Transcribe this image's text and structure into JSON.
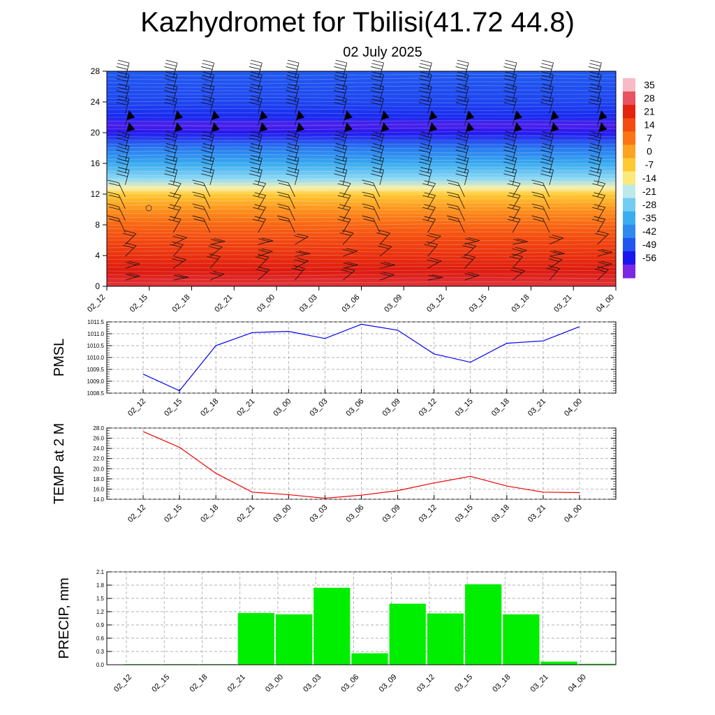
{
  "header": {
    "title": "Kazhydromet for Tbilisi(41.72 44.8)",
    "date": "02 July 2025"
  },
  "chart_data": [
    {
      "type": "heatmap",
      "name": "temperature-cross-section-with-wind-barbs",
      "x_categories": [
        "02_12",
        "02_15",
        "02_18",
        "02_21",
        "03_00",
        "03_03",
        "03_06",
        "03_09",
        "03_12",
        "03_15",
        "03_18",
        "03_21",
        "04_00"
      ],
      "y_ticks": [
        0,
        4,
        8,
        12,
        16,
        20,
        24,
        28
      ],
      "ylim": [
        0,
        28
      ],
      "colorbar": {
        "levels": [
          35,
          28,
          21,
          14,
          7,
          0,
          -7,
          -14,
          -21,
          -28,
          -35,
          -42,
          -49,
          -56
        ],
        "range": [
          -60,
          38
        ]
      },
      "temperature_profile": [
        {
          "level": 0,
          "value": 30
        },
        {
          "level": 2,
          "value": 26
        },
        {
          "level": 4,
          "value": 22
        },
        {
          "level": 6,
          "value": 18
        },
        {
          "level": 8,
          "value": 13
        },
        {
          "level": 10,
          "value": 6
        },
        {
          "level": 12,
          "value": -4
        },
        {
          "level": 12.8,
          "value": -12
        },
        {
          "level": 14,
          "value": -22
        },
        {
          "level": 16,
          "value": -32
        },
        {
          "level": 18,
          "value": -42
        },
        {
          "level": 20,
          "value": -53
        },
        {
          "level": 21,
          "value": -56
        },
        {
          "level": 22,
          "value": -50
        },
        {
          "level": 24,
          "value": -47
        },
        {
          "level": 28,
          "value": -45
        }
      ]
    },
    {
      "type": "line",
      "name": "pmsl",
      "ylabel": "PMSL",
      "categories": [
        "02_12",
        "02_15",
        "02_18",
        "02_21",
        "03_00",
        "03_03",
        "03_06",
        "03_09",
        "03_12",
        "03_15",
        "03_18",
        "03_21",
        "04_00"
      ],
      "values": [
        1009.3,
        1008.6,
        1010.5,
        1011.05,
        1011.1,
        1010.8,
        1011.4,
        1011.15,
        1010.15,
        1009.8,
        1010.6,
        1010.7,
        1011.3
      ],
      "yticks": [
        "1008.5",
        "1009.0",
        "1009.5",
        "1010.0",
        "1010.5",
        "1011.0",
        "1011.5"
      ],
      "ylim": [
        1008.5,
        1011.5
      ],
      "color": "#0000ee"
    },
    {
      "type": "line",
      "name": "temp-2m",
      "ylabel": "TEMP at 2 M",
      "categories": [
        "02_12",
        "02_15",
        "02_18",
        "02_21",
        "03_00",
        "03_03",
        "03_06",
        "03_09",
        "03_12",
        "03_15",
        "03_18",
        "03_21",
        "04_00"
      ],
      "values": [
        27.3,
        24.2,
        19.1,
        15.4,
        14.9,
        14.2,
        14.8,
        15.7,
        17.2,
        18.5,
        16.6,
        15.4,
        15.3
      ],
      "yticks": [
        "14.0",
        "16.0",
        "18.0",
        "20.0",
        "22.0",
        "24.0",
        "26.0",
        "28.0"
      ],
      "ylim": [
        14,
        28
      ],
      "color": "#ee0000"
    },
    {
      "type": "bar",
      "name": "precip",
      "ylabel": "PRECIP, mm",
      "categories": [
        "02_12",
        "02_15",
        "02_18",
        "02_21",
        "03_00",
        "03_03",
        "03_06",
        "03_09",
        "03_12",
        "03_15",
        "03_18",
        "03_21",
        "04_00"
      ],
      "values": [
        0,
        0,
        0,
        1.17,
        1.14,
        1.74,
        0.26,
        1.38,
        1.16,
        1.82,
        1.14,
        0.07,
        0.02
      ],
      "yticks": [
        "0.0",
        "0.3",
        "0.6",
        "0.9",
        "1.2",
        "1.5",
        "1.8",
        "2.1"
      ],
      "ylim": [
        0,
        2.1
      ],
      "color": "#00ee00"
    }
  ]
}
